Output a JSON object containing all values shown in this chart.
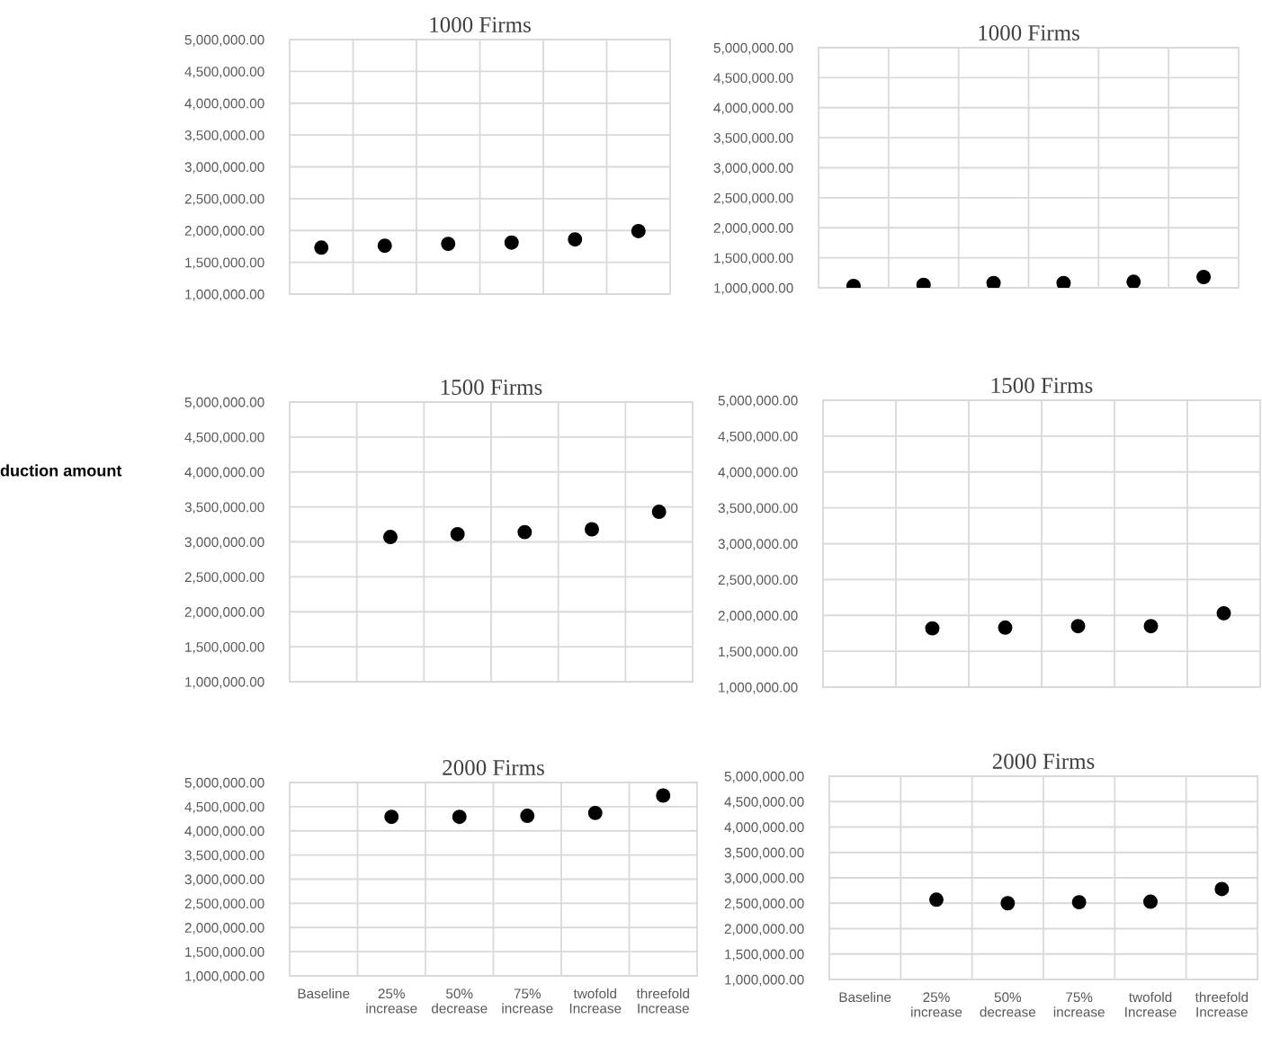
{
  "chart_data": [
    {
      "type": "scatter",
      "title": "1000 Firms",
      "categories": [
        null,
        null,
        null,
        null,
        null,
        null
      ],
      "series": [
        {
          "color": "#000000",
          "values": [
            1730000,
            1760000,
            1790000,
            1810000,
            1860000,
            1990000
          ]
        }
      ],
      "ylim": [
        1000000,
        5000000
      ],
      "yticks": [
        {
          "value": 1000000,
          "label": "1,000,000.00"
        },
        {
          "value": 1500000,
          "label": "1,500,000.00"
        },
        {
          "value": 2000000,
          "label": "2,000,000.00"
        },
        {
          "value": 2500000,
          "label": "2,500,000.00"
        },
        {
          "value": 3000000,
          "label": "3,000,000.00"
        },
        {
          "value": 3500000,
          "label": "3,500,000.00"
        },
        {
          "value": 4000000,
          "label": "4,000,000.00"
        },
        {
          "value": 4500000,
          "label": "4,500,000.00"
        },
        {
          "value": 5000000,
          "label": "5,000,000.00"
        }
      ],
      "grid": true,
      "marker": "circle",
      "tick_labels": "y"
    },
    {
      "type": "scatter",
      "title": "1000 Firms",
      "categories": [
        null,
        null,
        null,
        null,
        null,
        null
      ],
      "series": [
        {
          "color": "#000000",
          "values": [
            1030000,
            1050000,
            1080000,
            1080000,
            1100000,
            1180000
          ]
        }
      ],
      "ylim": [
        1000000,
        5000000
      ],
      "yticks": [
        {
          "value": 1000000,
          "label": "1,000,000.00"
        },
        {
          "value": 1500000,
          "label": "1,500,000.00"
        },
        {
          "value": 2000000,
          "label": "2,000,000.00"
        },
        {
          "value": 2500000,
          "label": "2,500,000.00"
        },
        {
          "value": 3000000,
          "label": "3,000,000.00"
        },
        {
          "value": 3500000,
          "label": "3,500,000.00"
        },
        {
          "value": 4000000,
          "label": "4,000,000.00"
        },
        {
          "value": 4500000,
          "label": "4,500,000.00"
        },
        {
          "value": 5000000,
          "label": "5,000,000.00"
        }
      ],
      "grid": true,
      "marker": "circle",
      "tick_labels": "y"
    },
    {
      "type": "scatter",
      "title": "1500 Firms",
      "ylabel": "duction amount",
      "categories": [
        null,
        null,
        null,
        null,
        null,
        null
      ],
      "series": [
        {
          "color": "#000000",
          "values": [
            null,
            3070000,
            3110000,
            3140000,
            3180000,
            3430000
          ]
        }
      ],
      "ylim": [
        1000000,
        5000000
      ],
      "yticks": [
        {
          "value": 1000000,
          "label": "1,000,000.00"
        },
        {
          "value": 1500000,
          "label": "1,500,000.00"
        },
        {
          "value": 2000000,
          "label": "2,000,000.00"
        },
        {
          "value": 2500000,
          "label": "2,500,000.00"
        },
        {
          "value": 3000000,
          "label": "3,000,000.00"
        },
        {
          "value": 3500000,
          "label": "3,500,000.00"
        },
        {
          "value": 4000000,
          "label": "4,000,000.00"
        },
        {
          "value": 4500000,
          "label": "4,500,000.00"
        },
        {
          "value": 5000000,
          "label": "5,000,000.00"
        }
      ],
      "grid": true,
      "marker": "circle",
      "tick_labels": "y"
    },
    {
      "type": "scatter",
      "title": "1500 Firms",
      "categories": [
        null,
        null,
        null,
        null,
        null,
        null
      ],
      "series": [
        {
          "color": "#000000",
          "values": [
            null,
            1820000,
            1830000,
            1850000,
            1850000,
            2030000
          ]
        }
      ],
      "ylim": [
        1000000,
        5000000
      ],
      "yticks": [
        {
          "value": 1000000,
          "label": "1,000,000.00"
        },
        {
          "value": 1500000,
          "label": "1,500,000.00"
        },
        {
          "value": 2000000,
          "label": "2,000,000.00"
        },
        {
          "value": 2500000,
          "label": "2,500,000.00"
        },
        {
          "value": 3000000,
          "label": "3,000,000.00"
        },
        {
          "value": 3500000,
          "label": "3,500,000.00"
        },
        {
          "value": 4000000,
          "label": "4,000,000.00"
        },
        {
          "value": 4500000,
          "label": "4,500,000.00"
        },
        {
          "value": 5000000,
          "label": "5,000,000.00"
        }
      ],
      "grid": true,
      "marker": "circle",
      "tick_labels": "y"
    },
    {
      "type": "scatter",
      "title": "2000 Firms",
      "categories": [
        "Baseline",
        "25% increase",
        "50% decrease",
        "75% increase",
        "twofold Increase",
        "threefold Increase"
      ],
      "series": [
        {
          "color": "#000000",
          "values": [
            null,
            4290000,
            4290000,
            4310000,
            4370000,
            4730000
          ]
        }
      ],
      "ylim": [
        1000000,
        5000000
      ],
      "yticks": [
        {
          "value": 1000000,
          "label": "1,000,000.00"
        },
        {
          "value": 1500000,
          "label": "1,500,000.00"
        },
        {
          "value": 2000000,
          "label": "2,000,000.00"
        },
        {
          "value": 2500000,
          "label": "2,500,000.00"
        },
        {
          "value": 3000000,
          "label": "3,000,000.00"
        },
        {
          "value": 3500000,
          "label": "3,500,000.00"
        },
        {
          "value": 4000000,
          "label": "4,000,000.00"
        },
        {
          "value": 4500000,
          "label": "4,500,000.00"
        },
        {
          "value": 5000000,
          "label": "5,000,000.00"
        }
      ],
      "grid": true,
      "marker": "circle"
    },
    {
      "type": "scatter",
      "title": "2000 Firms",
      "categories": [
        "Baseline",
        "25% increase",
        "50% decrease",
        "75% increase",
        "twofold Increase",
        "threefold Increase"
      ],
      "series": [
        {
          "color": "#000000",
          "values": [
            null,
            2570000,
            2500000,
            2520000,
            2530000,
            2780000
          ]
        }
      ],
      "ylim": [
        1000000,
        5000000
      ],
      "yticks": [
        {
          "value": 1000000,
          "label": "1,000,000.00"
        },
        {
          "value": 1500000,
          "label": "1,500,000.00"
        },
        {
          "value": 2000000,
          "label": "2,000,000.00"
        },
        {
          "value": 2500000,
          "label": "2,500,000.00"
        },
        {
          "value": 3000000,
          "label": "3,000,000.00"
        },
        {
          "value": 3500000,
          "label": "3,500,000.00"
        },
        {
          "value": 4000000,
          "label": "4,000,000.00"
        },
        {
          "value": 4500000,
          "label": "4,500,000.00"
        },
        {
          "value": 5000000,
          "label": "5,000,000.00"
        }
      ],
      "grid": true,
      "marker": "circle"
    }
  ]
}
